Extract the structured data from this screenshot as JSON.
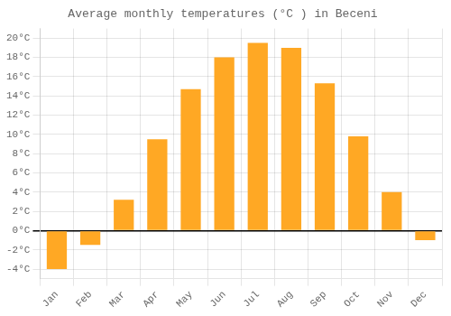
{
  "chart_data": {
    "type": "bar",
    "title": "Average monthly temperatures (°C ) in Beceni",
    "categories": [
      "Jan",
      "Feb",
      "Mar",
      "Apr",
      "May",
      "Jun",
      "Jul",
      "Aug",
      "Sep",
      "Oct",
      "Nov",
      "Dec"
    ],
    "values": [
      -4.0,
      -1.5,
      3.2,
      9.5,
      14.7,
      18.0,
      19.5,
      19.0,
      15.3,
      9.8,
      4.0,
      -1.0
    ],
    "color": "#FFA824",
    "ylim": [
      -5,
      21
    ],
    "yticks": [
      {
        "value": -4,
        "label": "-4°C"
      },
      {
        "value": -2,
        "label": "-2°C"
      },
      {
        "value": 0,
        "label": "0°C"
      },
      {
        "value": 2,
        "label": "2°C"
      },
      {
        "value": 4,
        "label": "4°C"
      },
      {
        "value": 6,
        "label": "6°C"
      },
      {
        "value": 8,
        "label": "8°C"
      },
      {
        "value": 10,
        "label": "10°C"
      },
      {
        "value": 12,
        "label": "12°C"
      },
      {
        "value": 14,
        "label": "14°C"
      },
      {
        "value": 16,
        "label": "16°C"
      },
      {
        "value": 18,
        "label": "18°C"
      },
      {
        "value": 20,
        "label": "20°C"
      }
    ],
    "grid": true
  }
}
